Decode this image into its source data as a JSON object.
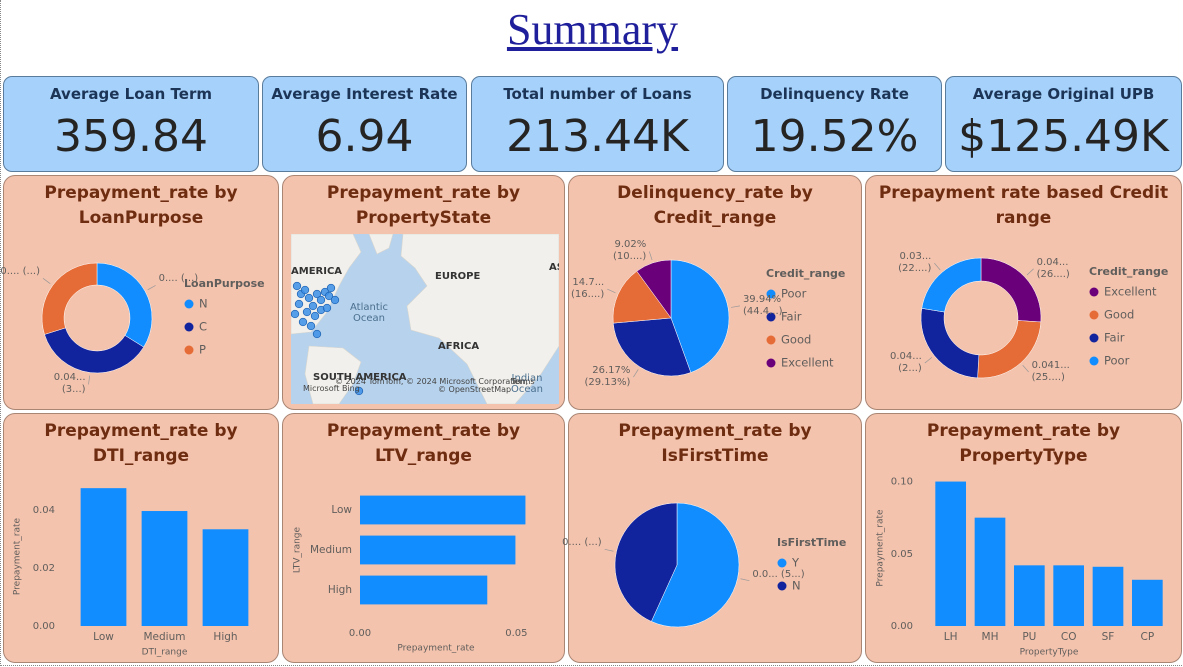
{
  "title": "Summary",
  "kpis": [
    {
      "label": "Average Loan Term",
      "value": "359.84"
    },
    {
      "label": "Average Interest Rate",
      "value": "6.94"
    },
    {
      "label": "Total number of Loans",
      "value": "213.44K"
    },
    {
      "label": "Delinquency Rate",
      "value": "19.52%"
    },
    {
      "label": "Average Original UPB",
      "value": "$125.49K"
    }
  ],
  "chart_data": [
    {
      "type": "donut",
      "title": "Prepayment_rate by LoanPurpose",
      "legend_title": "LoanPurpose",
      "categories": [
        "N",
        "C",
        "P"
      ],
      "values": [
        0.042,
        0.045,
        0.037
      ],
      "value_labels": [
        "0.... (...)",
        "0.04... (3...)",
        "0.... (...)"
      ],
      "colors": [
        "#118dff",
        "#12239e",
        "#e66c37"
      ]
    },
    {
      "type": "map",
      "title": "Prepayment_rate by PropertyState",
      "labels": [
        "AMERICA",
        "EUROPE",
        "Atlantic Ocean",
        "AFRICA",
        "SOUTH AMERICA",
        "Indian Ocean",
        "AS"
      ],
      "attribution": [
        "© 2024 TomTom, © 2024 Microsoft Corporation,",
        "Terms",
        "Microsoft Bing",
        "© OpenStreetMap"
      ]
    },
    {
      "type": "pie",
      "title": "Delinquency_rate by Credit_range",
      "legend_title": "Credit_range",
      "categories": [
        "Poor",
        "Fair",
        "Good",
        "Excellent"
      ],
      "values": [
        39.94,
        26.17,
        14.71,
        9.02
      ],
      "value_labels": [
        "39.94% (44.4...)",
        "26.17% (29.13%)",
        "14.7... (16....)",
        "9.02% (10....)"
      ],
      "colors": [
        "#118dff",
        "#12239e",
        "#e66c37",
        "#6b007b"
      ]
    },
    {
      "type": "donut",
      "title": "Prepayment rate based Credit range",
      "legend_title": "Credit_range",
      "categories": [
        "Excellent",
        "Good",
        "Fair",
        "Poor"
      ],
      "values": [
        0.043,
        0.041,
        0.044,
        0.037
      ],
      "value_labels": [
        "0.04... (26....)",
        "0.041... (25....)",
        "0.04... (2...)",
        "0.03... (22....)"
      ],
      "colors": [
        "#6b007b",
        "#e66c37",
        "#12239e",
        "#118dff"
      ]
    },
    {
      "type": "bar",
      "title": "Prepayment_rate by DTI_range",
      "x_label": "DTI_range",
      "y_label": "Prepayment_rate",
      "categories": [
        "Low",
        "Medium",
        "High"
      ],
      "values": [
        0.0476,
        0.0397,
        0.0334
      ],
      "color": "#118dff",
      "ylim": [
        0,
        0.048
      ],
      "yticks": [
        {
          "value": 0,
          "label": "0.00"
        },
        {
          "value": 0.02,
          "label": "0.02"
        },
        {
          "value": 0.04,
          "label": "0.04"
        }
      ]
    },
    {
      "type": "hbar",
      "title": "Prepayment_rate by LTV_range",
      "x_label": "Prepayment_rate",
      "y_label": "LTV_range",
      "categories": [
        "Low",
        "Medium",
        "High"
      ],
      "values": [
        0.0529,
        0.0497,
        0.0407
      ],
      "color": "#118dff",
      "xlim": [
        0,
        0.055
      ],
      "xticks": [
        {
          "value": 0,
          "label": "0.00"
        },
        {
          "value": 0.05,
          "label": "0.05"
        }
      ]
    },
    {
      "type": "pie",
      "title": "Prepayment_rate by IsFirstTime",
      "legend_title": "IsFirstTime",
      "categories": [
        "Y",
        "N"
      ],
      "values": [
        0.046,
        0.035
      ],
      "value_labels": [
        "0.0... (5...)",
        "0.... (...)"
      ],
      "colors": [
        "#118dff",
        "#12239e"
      ]
    },
    {
      "type": "bar",
      "title": "Prepayment_rate by PropertyType",
      "x_label": "PropertyType",
      "y_label": "Prepayment_rate",
      "categories": [
        "LH",
        "MH",
        "PU",
        "CO",
        "SF",
        "CP"
      ],
      "values": [
        0.1,
        0.075,
        0.042,
        0.042,
        0.041,
        0.032
      ],
      "color": "#118dff",
      "ylim": [
        0,
        0.108
      ],
      "yticks": [
        {
          "value": 0,
          "label": "0.00"
        },
        {
          "value": 0.05,
          "label": "0.05"
        },
        {
          "value": 0.1,
          "label": "0.10"
        }
      ]
    }
  ]
}
